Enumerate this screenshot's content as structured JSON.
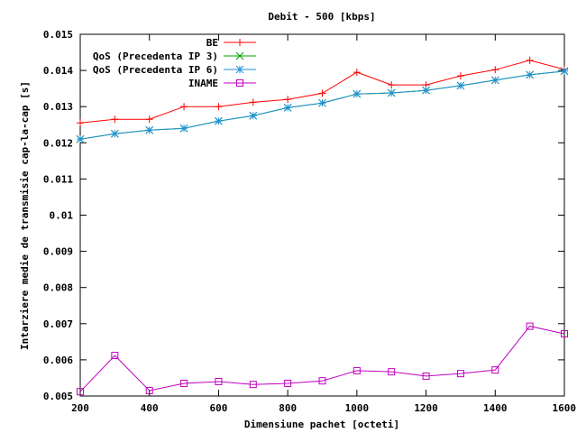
{
  "chart_data": {
    "type": "line",
    "title": "Debit - 500 [kbps]",
    "xlabel": "Dimensiune pachet [octeti]",
    "ylabel": "Intarziere medie de transmisie cap-la-cap [s]",
    "xlim": [
      200,
      1600
    ],
    "ylim": [
      0.005,
      0.015
    ],
    "x_ticks": [
      200,
      400,
      600,
      800,
      1000,
      1200,
      1400,
      1600
    ],
    "y_ticks": [
      0.005,
      0.006,
      0.007,
      0.008,
      0.009,
      0.01,
      0.011,
      0.012,
      0.013,
      0.014,
      0.015
    ],
    "grid": false,
    "legend_position": "top-right",
    "x": [
      200,
      300,
      400,
      500,
      600,
      700,
      800,
      900,
      1000,
      1100,
      1200,
      1300,
      1400,
      1500,
      1600
    ],
    "series": [
      {
        "name": "BE",
        "color": "#ff0000",
        "marker": "plus",
        "values": [
          0.01255,
          0.01265,
          0.01265,
          0.013,
          0.013,
          0.01312,
          0.0132,
          0.01337,
          0.01395,
          0.0136,
          0.0136,
          0.01385,
          0.01402,
          0.01428,
          0.01403
        ]
      },
      {
        "name": "QoS (Precedenta IP 3)",
        "color": "#00a000",
        "marker": "cross",
        "values": [
          0.0121,
          0.01225,
          0.01235,
          0.0124,
          0.0126,
          0.01275,
          0.01297,
          0.0131,
          0.01335,
          0.01338,
          0.01345,
          0.01358,
          0.01373,
          0.01388,
          0.01398
        ]
      },
      {
        "name": "QoS (Precedenta IP 6)",
        "color": "#1f8fd6",
        "marker": "star",
        "values": [
          0.0121,
          0.01225,
          0.01235,
          0.0124,
          0.0126,
          0.01275,
          0.01297,
          0.0131,
          0.01335,
          0.01338,
          0.01345,
          0.01358,
          0.01373,
          0.01388,
          0.01398
        ]
      },
      {
        "name": "INAME",
        "color": "#c000c0",
        "marker": "square",
        "values": [
          0.00512,
          0.00612,
          0.00515,
          0.00535,
          0.0054,
          0.00532,
          0.00535,
          0.00542,
          0.0057,
          0.00567,
          0.00555,
          0.00562,
          0.00572,
          0.00693,
          0.00672
        ]
      }
    ]
  }
}
